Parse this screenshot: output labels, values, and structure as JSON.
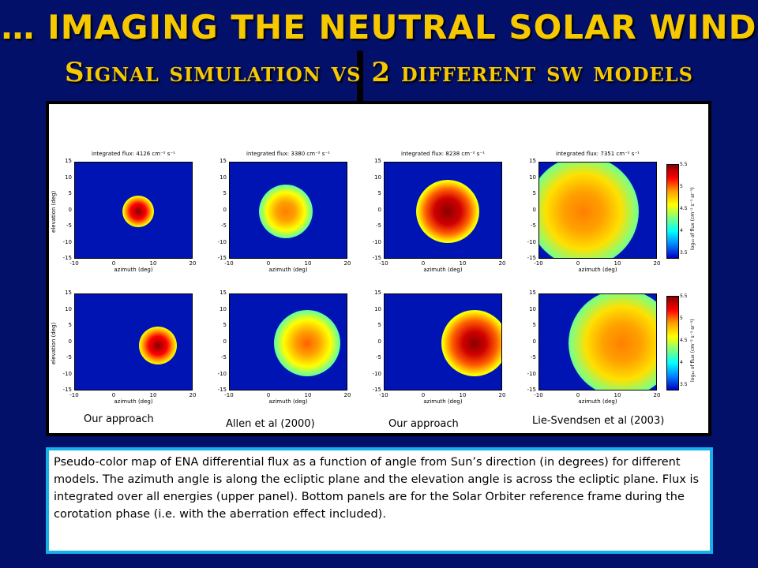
{
  "slide": {
    "title": "… IMAGING THE NEUTRAL SOLAR WIND",
    "subtitle": "Signal simulation vs  2 different sw models"
  },
  "figure": {
    "xlabel": "azimuth (deg)",
    "ylabel": "elevation (deg)",
    "x_ticks": [
      "-10",
      "0",
      "10",
      "20"
    ],
    "y_ticks": [
      "15",
      "10",
      "5",
      "0",
      "-5",
      "-10",
      "-15"
    ],
    "panel_titles": [
      "integrated flux: 4126 cm⁻² s⁻¹",
      "integrated flux: 3380 cm⁻² s⁻¹",
      "integrated flux: 8238 cm⁻² s⁻¹",
      "integrated flux: 7351 cm⁻² s⁻¹"
    ],
    "colorbar": {
      "label": "log₁₀ of flux (cm⁻² s⁻¹ sr⁻¹)",
      "ticks": [
        "5.5",
        "5",
        "4.5",
        "4",
        "3.5"
      ]
    },
    "model_labels": [
      "Our approach",
      "Allen et al (2000)",
      "Our approach",
      "Lie-Svendsen et al (2003)"
    ]
  },
  "caption": "Pseudo-color map of ENA differential flux as a function of angle from Sun’s direction (in degrees) for different models. The azimuth angle is along the ecliptic plane and the elevation angle is across the ecliptic plane. Flux is integrated over all energies (upper panel). Bottom panels are for the Solar Orbiter reference frame during the corotation phase (i.e. with the aberration effect included)."
}
